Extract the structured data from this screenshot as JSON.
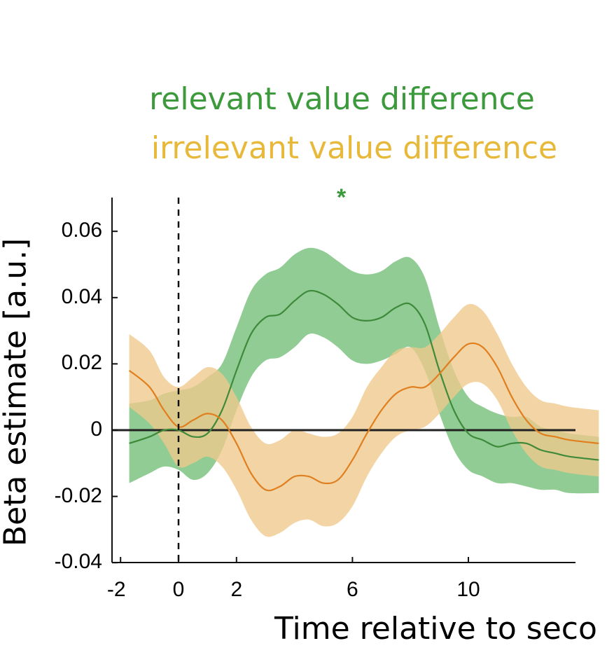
{
  "chart_data": {
    "type": "line",
    "xlabel": "Time relative to seco",
    "ylabel": "Beta estimate [a.u.]",
    "xlim": [
      -2.2,
      14.5
    ],
    "ylim": [
      -0.04,
      0.07
    ],
    "x_ticks": [
      -2,
      0,
      2,
      6,
      10
    ],
    "x_tick_labels": [
      "-2",
      "0",
      "2",
      "6",
      "10"
    ],
    "y_ticks": [
      -0.04,
      -0.02,
      0,
      0.02,
      0.04,
      0.06
    ],
    "y_tick_labels": [
      "-0.04",
      "-0.02",
      "0",
      "0.02",
      "0.04",
      "0.06"
    ],
    "vline_x": 0,
    "hline_y": 0,
    "significance_marker": {
      "text": "*",
      "x": 5.7,
      "y": 0.0695,
      "series": "relevant value difference"
    },
    "legend_position": "top-center",
    "x": [
      -1.7,
      -1.0,
      -0.5,
      0,
      0.5,
      1.0,
      1.5,
      2.0,
      2.5,
      3.0,
      3.5,
      4.0,
      4.5,
      5.0,
      5.5,
      6.0,
      6.5,
      7.0,
      7.5,
      8.0,
      8.5,
      9.0,
      9.5,
      10.0,
      10.5,
      11.0,
      11.5,
      12.0,
      12.5,
      13.0,
      13.5,
      14.5
    ],
    "series": [
      {
        "name": "relevant value difference",
        "color": "#3c9a3c",
        "band_color": "#8ac98e",
        "mean": [
          -0.004,
          -0.002,
          0.0,
          0.0,
          -0.002,
          -0.001,
          0.006,
          0.018,
          0.029,
          0.034,
          0.035,
          0.039,
          0.042,
          0.041,
          0.038,
          0.034,
          0.033,
          0.034,
          0.037,
          0.038,
          0.032,
          0.018,
          0.006,
          -0.001,
          -0.003,
          -0.005,
          -0.004,
          -0.004,
          -0.006,
          -0.007,
          -0.008,
          -0.009
        ],
        "upper": [
          0.008,
          0.009,
          0.011,
          0.012,
          0.013,
          0.016,
          0.02,
          0.031,
          0.042,
          0.047,
          0.049,
          0.053,
          0.055,
          0.054,
          0.051,
          0.048,
          0.047,
          0.048,
          0.051,
          0.052,
          0.046,
          0.031,
          0.018,
          0.01,
          0.007,
          0.005,
          0.004,
          0.004,
          0.001,
          0.0,
          -0.001,
          -0.002
        ],
        "lower": [
          -0.016,
          -0.013,
          -0.011,
          -0.012,
          -0.015,
          -0.013,
          -0.006,
          0.006,
          0.016,
          0.021,
          0.022,
          0.025,
          0.029,
          0.028,
          0.025,
          0.021,
          0.02,
          0.021,
          0.023,
          0.025,
          0.018,
          0.005,
          -0.006,
          -0.012,
          -0.014,
          -0.016,
          -0.016,
          -0.017,
          -0.018,
          -0.018,
          -0.019,
          -0.019
        ]
      },
      {
        "name": "irrelevant value difference",
        "color": "#e8902a",
        "band_color": "#f0c98c",
        "mean": [
          0.018,
          0.013,
          0.006,
          0.001,
          0.003,
          0.005,
          0.003,
          -0.004,
          -0.013,
          -0.018,
          -0.017,
          -0.014,
          -0.014,
          -0.016,
          -0.015,
          -0.009,
          -0.001,
          0.006,
          0.011,
          0.013,
          0.013,
          0.017,
          0.022,
          0.026,
          0.025,
          0.019,
          0.01,
          0.003,
          -0.001,
          -0.002,
          -0.003,
          -0.004
        ],
        "upper": [
          0.029,
          0.024,
          0.016,
          0.013,
          0.016,
          0.019,
          0.017,
          0.01,
          0.001,
          -0.004,
          -0.003,
          0.0,
          -0.001,
          -0.002,
          -0.001,
          0.004,
          0.013,
          0.019,
          0.024,
          0.025,
          0.025,
          0.029,
          0.034,
          0.038,
          0.036,
          0.029,
          0.02,
          0.013,
          0.009,
          0.008,
          0.007,
          0.006
        ],
        "lower": [
          0.007,
          0.002,
          -0.004,
          -0.011,
          -0.01,
          -0.008,
          -0.011,
          -0.018,
          -0.027,
          -0.032,
          -0.031,
          -0.028,
          -0.027,
          -0.029,
          -0.028,
          -0.023,
          -0.014,
          -0.007,
          -0.002,
          0.0,
          0.001,
          0.005,
          0.01,
          0.014,
          0.014,
          0.009,
          0.0,
          -0.007,
          -0.011,
          -0.012,
          -0.013,
          -0.014
        ]
      }
    ]
  }
}
